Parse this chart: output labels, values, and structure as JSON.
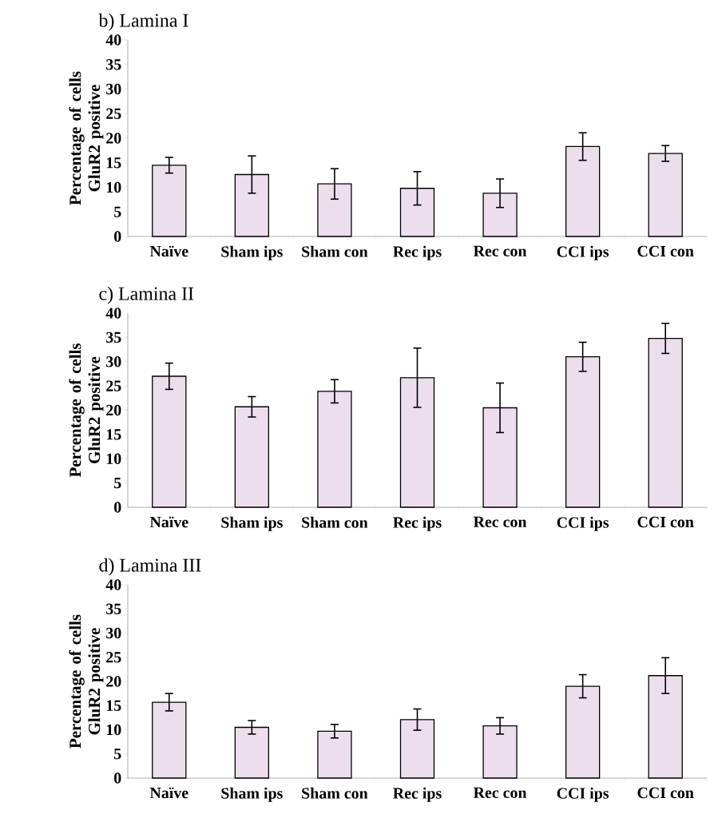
{
  "chart_data": [
    {
      "type": "bar",
      "title": "b) Lamina I",
      "ylabel": "Percentage of cells GluR2 positive",
      "categories": [
        "Naïve",
        "Sham ips",
        "Sham con",
        "Rec ips",
        "Rec con",
        "CCI ips",
        "CCI con"
      ],
      "values": [
        14.5,
        12.6,
        10.7,
        9.8,
        8.8,
        18.3,
        16.9
      ],
      "errors": [
        1.6,
        3.8,
        3.1,
        3.4,
        2.9,
        2.8,
        1.6
      ],
      "color": "#ecdeec",
      "ylim": [
        0,
        40
      ],
      "yticks": [
        0,
        5,
        10,
        15,
        20,
        25,
        30,
        35,
        40
      ]
    },
    {
      "type": "bar",
      "title": "c) Lamina II",
      "ylabel": "Percentage of cells GluR2 positive",
      "categories": [
        "Naïve",
        "Sham ips",
        "Sham con",
        "Rec ips",
        "Rec con",
        "CCI ips",
        "CCI con"
      ],
      "values": [
        27.0,
        20.7,
        23.9,
        26.7,
        20.5,
        31.0,
        34.8
      ],
      "errors": [
        2.7,
        2.1,
        2.4,
        6.1,
        5.1,
        3.0,
        3.1
      ],
      "color": "#ecdeec",
      "ylim": [
        0,
        40
      ],
      "yticks": [
        0,
        5,
        10,
        15,
        20,
        25,
        30,
        35,
        40
      ]
    },
    {
      "type": "bar",
      "title": "d) Lamina III",
      "ylabel": "Percentage of cells GluR2 positive",
      "categories": [
        "Naïve",
        "Sham ips",
        "Sham con",
        "Rec ips",
        "Rec con",
        "CCI ips",
        "CCI con"
      ],
      "values": [
        15.7,
        10.5,
        9.7,
        12.1,
        10.8,
        19.0,
        21.2
      ],
      "errors": [
        1.8,
        1.4,
        1.4,
        2.2,
        1.7,
        2.4,
        3.7
      ],
      "color": "#ecdeec",
      "ylim": [
        0,
        40
      ],
      "yticks": [
        0,
        5,
        10,
        15,
        20,
        25,
        30,
        35,
        40
      ]
    }
  ]
}
